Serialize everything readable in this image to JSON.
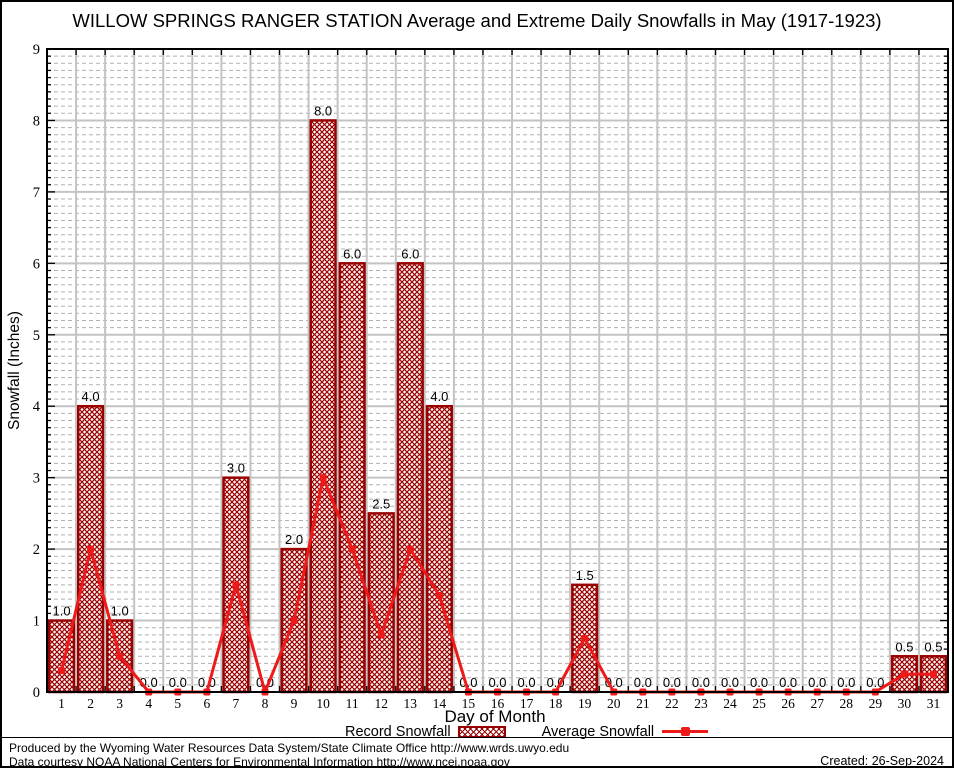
{
  "title": "WILLOW SPRINGS RANGER STATION Average and Extreme Daily Snowfalls in May (1917-1923)",
  "footer": {
    "line1": "Produced by the Wyoming Water Resources Data System/State Climate Office http://www.wrds.uwyo.edu",
    "line2": "Data courtesy NOAA National Centers for Environmental Information http://www.ncei.noaa.gov",
    "created": "Created: 26-Sep-2024"
  },
  "colors": {
    "bar": "#990000",
    "line": "#ee1a1a",
    "grid_major": "#c3c3c3",
    "grid_minor": "#b0b0b0",
    "axis": "#000000",
    "text": "#000000"
  },
  "chart_data": {
    "type": "bar",
    "title": "WILLOW SPRINGS RANGER STATION Average and Extreme Daily Snowfalls in May (1917-1923)",
    "xlabel": "Day of Month",
    "ylabel": "Snowfall (Inches)",
    "ylim": [
      0,
      9
    ],
    "y_ticks": [
      0,
      1,
      2,
      3,
      4,
      5,
      6,
      7,
      8,
      9
    ],
    "minor_y_step": 0.1,
    "grid": true,
    "legend_position": "bottom",
    "categories": [
      1,
      2,
      3,
      4,
      5,
      6,
      7,
      8,
      9,
      10,
      11,
      12,
      13,
      14,
      15,
      16,
      17,
      18,
      19,
      20,
      21,
      22,
      23,
      24,
      25,
      26,
      27,
      28,
      29,
      30,
      31
    ],
    "series": [
      {
        "name": "Record Snowfall",
        "type": "bar",
        "values": [
          1.0,
          4.0,
          1.0,
          0.0,
          0.0,
          0.0,
          3.0,
          0.0,
          2.0,
          8.0,
          6.0,
          2.5,
          6.0,
          4.0,
          0.0,
          0.0,
          0.0,
          0.0,
          1.5,
          0.0,
          0.0,
          0.0,
          0.0,
          0.0,
          0.0,
          0.0,
          0.0,
          0.0,
          0.0,
          0.5,
          0.5
        ],
        "labels": [
          "1.0",
          "4.0",
          "1.0",
          "0.0",
          "0.0",
          "0.0",
          "3.0",
          "0.0",
          "2.0",
          "8.0",
          "6.0",
          "2.5",
          "6.0",
          "4.0",
          "0.0",
          "0.0",
          "0.0",
          "0.0",
          "1.5",
          "0.0",
          "0.0",
          "0.0",
          "0.0",
          "0.0",
          "0.0",
          "0.0",
          "0.0",
          "0.0",
          "0.0",
          "0.5",
          "0.5"
        ]
      },
      {
        "name": "Average Snowfall",
        "type": "line",
        "values": [
          0.3,
          2.0,
          0.5,
          0.0,
          0.0,
          0.0,
          1.5,
          0.0,
          1.0,
          3.0,
          2.0,
          0.8,
          2.0,
          1.35,
          0.0,
          0.0,
          0.0,
          0.0,
          0.75,
          0.0,
          0.0,
          0.0,
          0.0,
          0.0,
          0.0,
          0.0,
          0.0,
          0.0,
          0.0,
          0.25,
          0.25
        ]
      }
    ]
  }
}
